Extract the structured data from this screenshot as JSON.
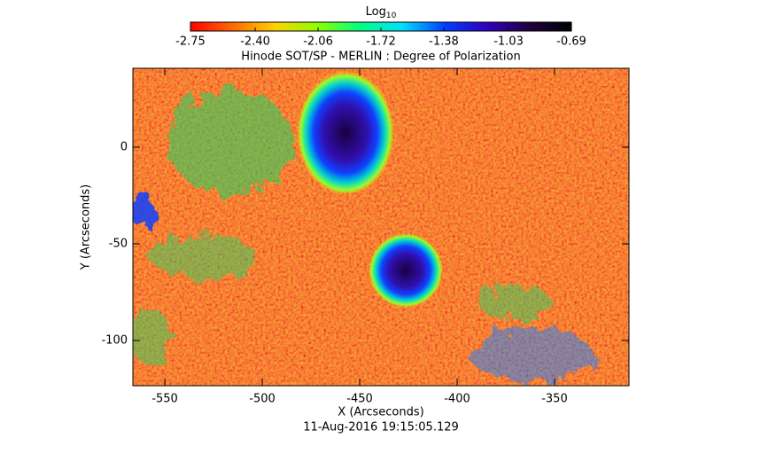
{
  "chart_data": {
    "type": "image",
    "title": "Hinode SOT/SP - MERLIN : Degree of Polarization",
    "x_label": "X (Arcseconds)",
    "y_label": "Y (Arcseconds)",
    "timestamp": "11-Aug-2016 19:15:05.129",
    "xlim": [
      -566.4,
      -311.8
    ],
    "xticks": [
      -550,
      -500,
      -450,
      -400,
      -350
    ],
    "ylim": [
      -123.4,
      40.8
    ],
    "yticks": [
      -100,
      -50,
      0
    ],
    "colorbar": {
      "title": "Log",
      "title_subscript": "10",
      "lim": [
        -2.75,
        -0.69
      ],
      "ticks": [
        -2.75,
        {
          "value": -2.4,
          "label": "-2.40"
        },
        -2.06,
        -1.72,
        -1.38,
        -1.03,
        -0.69
      ],
      "colormap": [
        "#ff0000",
        "#ff6a00",
        "#ffd000",
        "#8cff00",
        "#00ff80",
        "#00e0ff",
        "#0040ff",
        "#3000c0",
        "#200040",
        "#000000"
      ]
    }
  }
}
